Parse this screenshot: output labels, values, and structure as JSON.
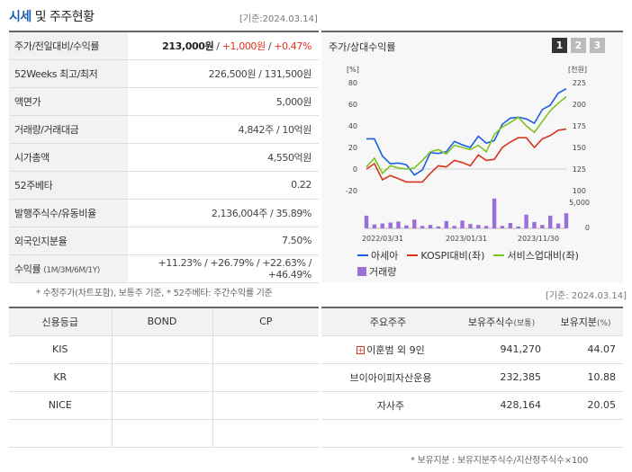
{
  "header": {
    "title_highlight": "시세",
    "title_rest": " 및 주주현황",
    "date": "[기준:2024.03.14]"
  },
  "price_rows": [
    {
      "label": "주가/전일대비/수익률"
    },
    {
      "label": "52Weeks 최고/최저",
      "value": "226,500원 / 131,500원"
    },
    {
      "label": "액면가",
      "value": "5,000원"
    },
    {
      "label": "거래량/거래대금",
      "value": "4,842주 / 10억원"
    },
    {
      "label": "시가총액",
      "value": "4,550억원"
    },
    {
      "label": "52주베타",
      "value": "0.22"
    },
    {
      "label": "발행주식수/유동비율",
      "value": "2,136,004주 / 35.89%"
    },
    {
      "label": "외국인지분율",
      "value": "7.50%"
    },
    {
      "label": "수익률",
      "label_small": "(1M/3M/6M/1Y)"
    }
  ],
  "price": {
    "current": "213,000원",
    "sep1": " / ",
    "change": "+1,000원",
    "sep2": " / ",
    "rate": "+0.47%"
  },
  "returns": {
    "m1": "+11.23%",
    "m3": "+26.79%",
    "m6": "+22.63%",
    "y1": "+46.49%",
    "sep": " / "
  },
  "note1": "* 수정주가(차트포함), 보통주 기준, * 52주베타: 주간수익률 기준",
  "chart_panel": {
    "title": "주가/상대수익률",
    "pages": [
      "1",
      "2",
      "3"
    ]
  },
  "chart_data": {
    "type": "line",
    "left_axis_unit": "[%]",
    "right_axis_unit": "[천원]",
    "left_ticks": [
      "80",
      "60",
      "40",
      "20",
      "0",
      "-20"
    ],
    "right_ticks": [
      "225",
      "200",
      "175",
      "150",
      "125",
      "100"
    ],
    "volume_ticks": [
      "5,000",
      "0"
    ],
    "x_labels": [
      "2022/03/31",
      "2023/01/31",
      "2023/11/30"
    ],
    "ylim_left": [
      -20,
      80
    ],
    "ylim_right": [
      100,
      225
    ],
    "series": [
      {
        "name": "아세아",
        "color": "#1a5fe0",
        "axis": "right",
        "values": [
          160,
          160,
          140,
          131,
          132,
          130,
          118,
          124,
          144,
          143,
          145,
          157,
          153,
          150,
          163,
          155,
          158,
          177,
          184,
          185,
          183,
          178,
          194,
          199,
          213,
          218
        ]
      },
      {
        "name": "KOSPI대비(좌)",
        "color": "#d9341e",
        "axis": "left",
        "values": [
          0,
          5,
          -10,
          -6,
          -9,
          -12,
          -12,
          -12,
          -4,
          3,
          2,
          8,
          6,
          3,
          13,
          8,
          9,
          20,
          25,
          29,
          29,
          20,
          28,
          31,
          36,
          37
        ]
      },
      {
        "name": "서비스업대비(좌)",
        "color": "#7cc41f",
        "axis": "left",
        "values": [
          2,
          10,
          -4,
          3,
          1,
          0,
          1,
          8,
          16,
          18,
          14,
          22,
          20,
          18,
          22,
          16,
          32,
          39,
          43,
          48,
          40,
          34,
          44,
          54,
          61,
          67
        ]
      },
      {
        "name": "거래량",
        "color": "#9c6fd6",
        "axis": "volume",
        "values": [
          2600,
          800,
          1000,
          1200,
          1400,
          600,
          1800,
          500,
          700,
          400,
          1500,
          500,
          1600,
          900,
          700,
          500,
          6100,
          500,
          1100,
          400,
          2800,
          1300,
          700,
          2600,
          1000,
          3100
        ]
      }
    ]
  },
  "credit": {
    "headers": [
      "신용등급",
      "BOND",
      "CP"
    ],
    "rows": [
      [
        "KIS",
        "",
        ""
      ],
      [
        "KR",
        "",
        ""
      ],
      [
        "NICE",
        "",
        ""
      ],
      [
        "",
        "",
        ""
      ]
    ]
  },
  "holders_date": "[기준: 2024.03.14]",
  "holders": {
    "headers": {
      "name": "주요주주",
      "shares": "보유주식수",
      "shares_unit": "(보통)",
      "pct": "보유지분",
      "pct_unit": "(%)"
    },
    "rows": [
      {
        "name": "이훈범 외 9인",
        "shares": "941,270",
        "pct": "44.07",
        "expand": true
      },
      {
        "name": "브이아이피자산운용",
        "shares": "232,385",
        "pct": "10.88",
        "expand": false
      },
      {
        "name": "자사주",
        "shares": "428,164",
        "pct": "20.05",
        "expand": false
      },
      {
        "name": "",
        "shares": "",
        "pct": "",
        "expand": false
      }
    ]
  },
  "note2": "* 보유지분 : 보유지분주식수/지산정주식수×100"
}
